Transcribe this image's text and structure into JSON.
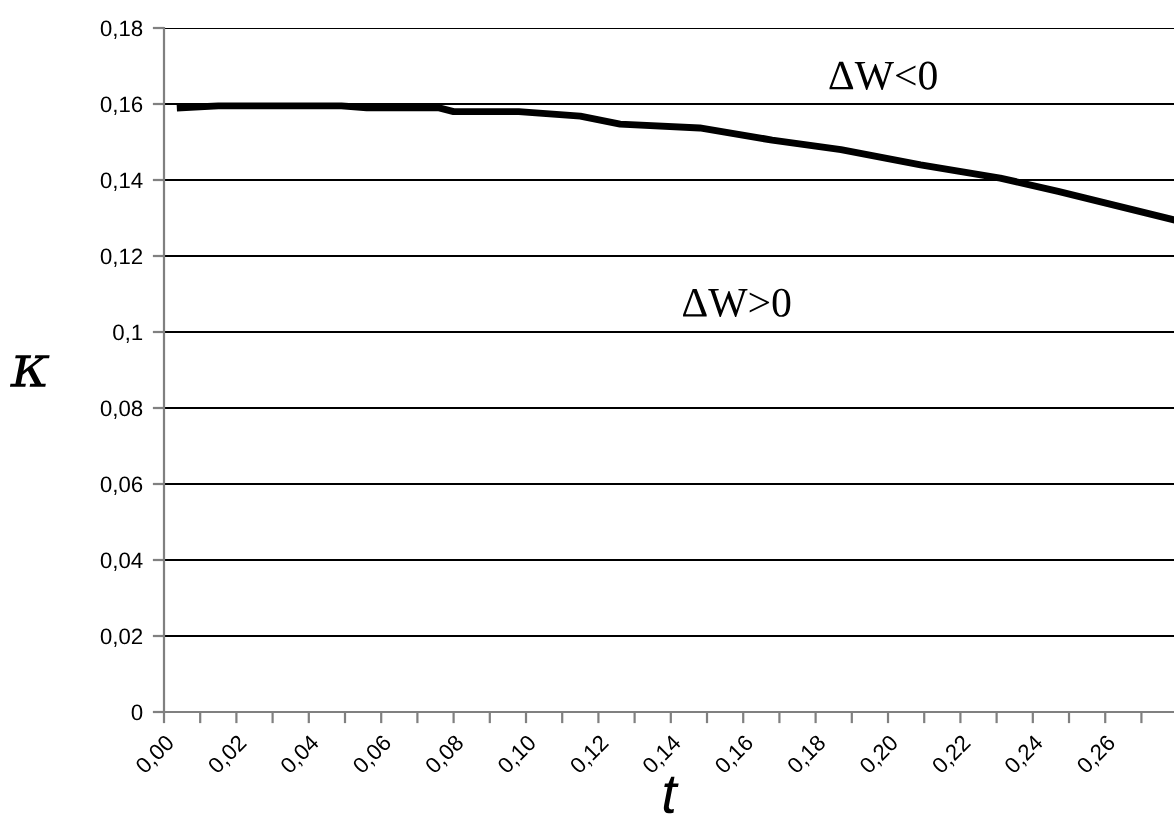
{
  "chart_data": {
    "type": "line",
    "xlabel": "t",
    "ylabel": "κ",
    "x": [
      0.0045,
      0.015,
      0.049,
      0.056,
      0.076,
      0.08,
      0.098,
      0.115,
      0.126,
      0.148,
      0.168,
      0.187,
      0.209,
      0.231,
      0.247,
      0.279
    ],
    "series": [
      {
        "color": "#000000",
        "values": [
          0.159,
          0.1595,
          0.1595,
          0.159,
          0.159,
          0.158,
          0.158,
          0.1568,
          0.1547,
          0.1537,
          0.1505,
          0.148,
          0.144,
          0.1405,
          0.137,
          0.1295
        ]
      }
    ],
    "xlim": [
      0,
      0.279
    ],
    "xticks": [
      {
        "value": 0,
        "label": "0,00"
      },
      {
        "value": 0.01,
        "label": null
      },
      {
        "value": 0.02,
        "label": "0,02"
      },
      {
        "value": 0.03,
        "label": null
      },
      {
        "value": 0.04,
        "label": "0,04"
      },
      {
        "value": 0.05,
        "label": null
      },
      {
        "value": 0.06,
        "label": "0,06"
      },
      {
        "value": 0.07,
        "label": null
      },
      {
        "value": 0.08,
        "label": "0,08"
      },
      {
        "value": 0.09,
        "label": null
      },
      {
        "value": 0.1,
        "label": "0,10"
      },
      {
        "value": 0.11,
        "label": null
      },
      {
        "value": 0.12,
        "label": "0,12"
      },
      {
        "value": 0.13,
        "label": null
      },
      {
        "value": 0.14,
        "label": "0,14"
      },
      {
        "value": 0.15,
        "label": null
      },
      {
        "value": 0.16,
        "label": "0,16"
      },
      {
        "value": 0.17,
        "label": null
      },
      {
        "value": 0.18,
        "label": "0,18"
      },
      {
        "value": 0.19,
        "label": null
      },
      {
        "value": 0.2,
        "label": "0,20"
      },
      {
        "value": 0.21,
        "label": null
      },
      {
        "value": 0.22,
        "label": "0,22"
      },
      {
        "value": 0.23,
        "label": null
      },
      {
        "value": 0.24,
        "label": "0,24"
      },
      {
        "value": 0.25,
        "label": null
      },
      {
        "value": 0.26,
        "label": "0,26"
      },
      {
        "value": 0.27,
        "label": null
      }
    ],
    "ylim": [
      0,
      0.18
    ],
    "yticks": [
      {
        "value": 0,
        "label": "0"
      },
      {
        "value": 0.02,
        "label": "0,02"
      },
      {
        "value": 0.04,
        "label": "0,04"
      },
      {
        "value": 0.06,
        "label": "0,06"
      },
      {
        "value": 0.08,
        "label": "0,08"
      },
      {
        "value": 0.1,
        "label": "0,1"
      },
      {
        "value": 0.12,
        "label": "0,12"
      },
      {
        "value": 0.14,
        "label": "0,14"
      },
      {
        "value": 0.16,
        "label": "0,16"
      },
      {
        "value": 0.18,
        "label": "0,18"
      }
    ],
    "grid": "y",
    "marker": "none",
    "line_style": "solid",
    "annotations": [
      "ΔW<0",
      "ΔW>0"
    ]
  }
}
